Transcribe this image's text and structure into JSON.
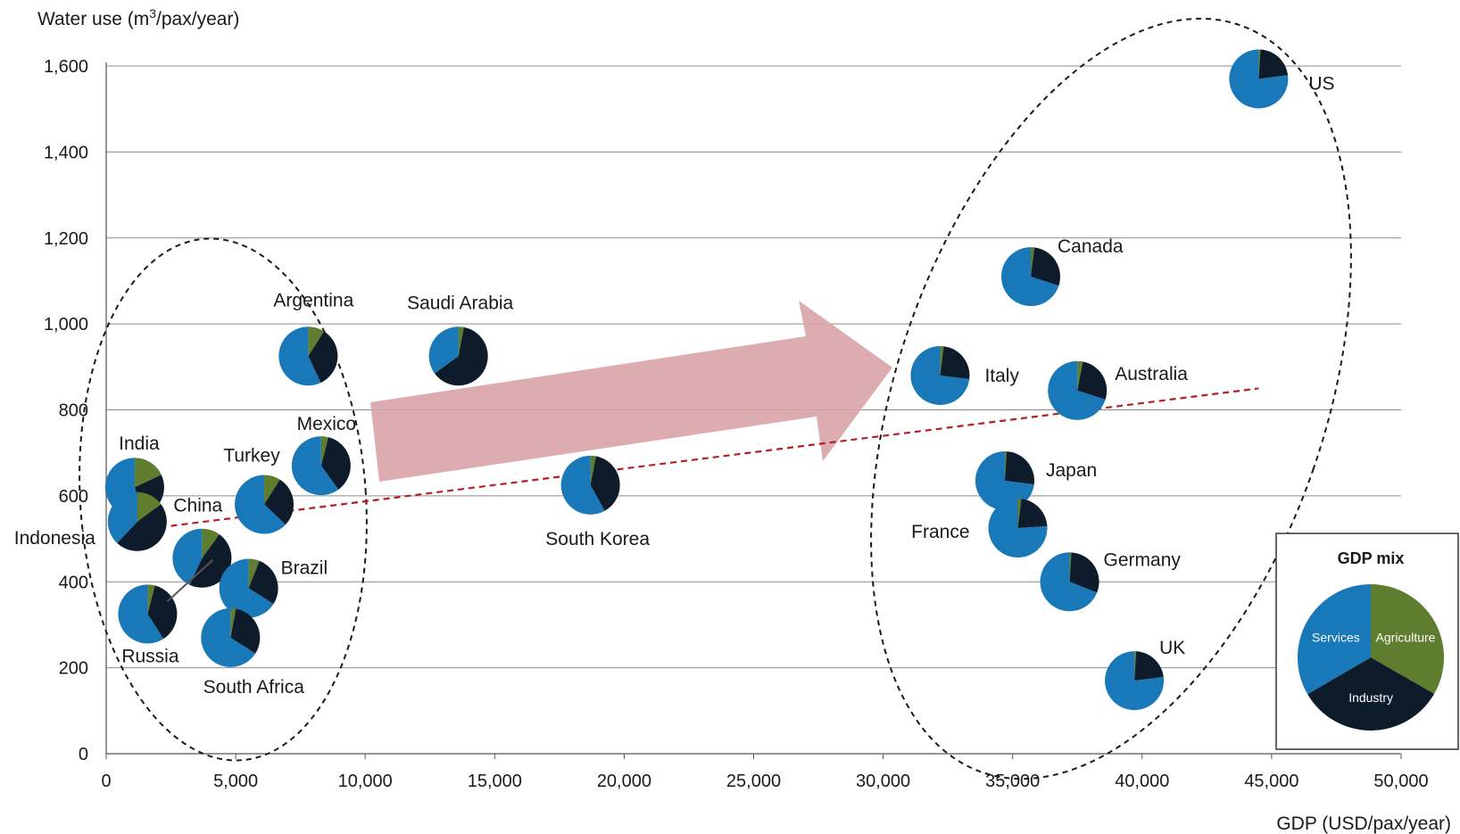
{
  "chart_data": {
    "type": "scatter",
    "ylabel_prefix": "Water use (m",
    "ylabel_sup": "3",
    "ylabel_suffix": "/pax/year)",
    "xlabel": "GDP (USD/pax/year)",
    "xlim": [
      0,
      50000
    ],
    "ylim": [
      0,
      1600
    ],
    "x_ticks": [
      0,
      5000,
      10000,
      15000,
      20000,
      25000,
      30000,
      35000,
      40000,
      45000,
      50000
    ],
    "x_tick_labels": [
      "0",
      "5,000",
      "10,000",
      "15,000",
      "20,000",
      "25,000",
      "30,000",
      "35,000",
      "40,000",
      "45,000",
      "50,000"
    ],
    "y_ticks": [
      0,
      200,
      400,
      600,
      800,
      1000,
      1200,
      1400,
      1600
    ],
    "y_tick_labels": [
      "0",
      "200",
      "400",
      "600",
      "800",
      "1,000",
      "1,200",
      "1,400",
      "1,600"
    ],
    "grid": true,
    "colors": {
      "services": "#1878b8",
      "industry": "#0d1b2a",
      "agriculture": "#5e7d2e",
      "trend": "#b22222",
      "arrow": "#d9a3a8",
      "gridline": "#8c8c8c"
    },
    "points": [
      {
        "label": "US",
        "gdp": 44500,
        "water": 1570,
        "agriculture": 1,
        "industry": 22,
        "services": 77
      },
      {
        "label": "Canada",
        "gdp": 35700,
        "water": 1110,
        "agriculture": 2,
        "industry": 28,
        "services": 70
      },
      {
        "label": "Italy",
        "gdp": 32200,
        "water": 880,
        "agriculture": 2,
        "industry": 25,
        "services": 73
      },
      {
        "label": "Australia",
        "gdp": 37500,
        "water": 845,
        "agriculture": 3,
        "industry": 27,
        "services": 70
      },
      {
        "label": "Japan",
        "gdp": 34700,
        "water": 635,
        "agriculture": 1,
        "industry": 26,
        "services": 73
      },
      {
        "label": "France",
        "gdp": 35200,
        "water": 525,
        "agriculture": 2,
        "industry": 22,
        "services": 76
      },
      {
        "label": "Germany",
        "gdp": 37200,
        "water": 400,
        "agriculture": 1,
        "industry": 30,
        "services": 69
      },
      {
        "label": "UK",
        "gdp": 39700,
        "water": 170,
        "agriculture": 1,
        "industry": 22,
        "services": 77
      },
      {
        "label": "Argentina",
        "gdp": 7800,
        "water": 925,
        "agriculture": 9,
        "industry": 34,
        "services": 57
      },
      {
        "label": "Saudi Arabia",
        "gdp": 13600,
        "water": 925,
        "agriculture": 3,
        "industry": 62,
        "services": 35
      },
      {
        "label": "Mexico",
        "gdp": 8300,
        "water": 670,
        "agriculture": 4,
        "industry": 36,
        "services": 60
      },
      {
        "label": "India",
        "gdp": 1100,
        "water": 620,
        "agriculture": 18,
        "industry": 27,
        "services": 55
      },
      {
        "label": "Indonesia",
        "gdp": 1200,
        "water": 540,
        "agriculture": 15,
        "industry": 47,
        "services": 38
      },
      {
        "label": "Turkey",
        "gdp": 6100,
        "water": 580,
        "agriculture": 9,
        "industry": 28,
        "services": 63
      },
      {
        "label": "China",
        "gdp": 3700,
        "water": 455,
        "agriculture": 10,
        "industry": 47,
        "services": 43
      },
      {
        "label": "Brazil",
        "gdp": 5500,
        "water": 385,
        "agriculture": 6,
        "industry": 28,
        "services": 66
      },
      {
        "label": "Russia",
        "gdp": 1600,
        "water": 325,
        "agriculture": 4,
        "industry": 37,
        "services": 59
      },
      {
        "label": "South Africa",
        "gdp": 4800,
        "water": 270,
        "agriculture": 3,
        "industry": 31,
        "services": 66
      },
      {
        "label": "South Korea",
        "gdp": 18700,
        "water": 625,
        "agriculture": 3,
        "industry": 39,
        "services": 58
      }
    ],
    "trendline": {
      "from": [
        2500,
        530
      ],
      "to": [
        44500,
        850
      ]
    },
    "legend": {
      "title": "GDP mix",
      "placement": "bottom-right",
      "slices": [
        {
          "name": "Agriculture",
          "share": 33.3
        },
        {
          "name": "Industry",
          "share": 33.3
        },
        {
          "name": "Services",
          "share": 33.4
        }
      ]
    }
  }
}
